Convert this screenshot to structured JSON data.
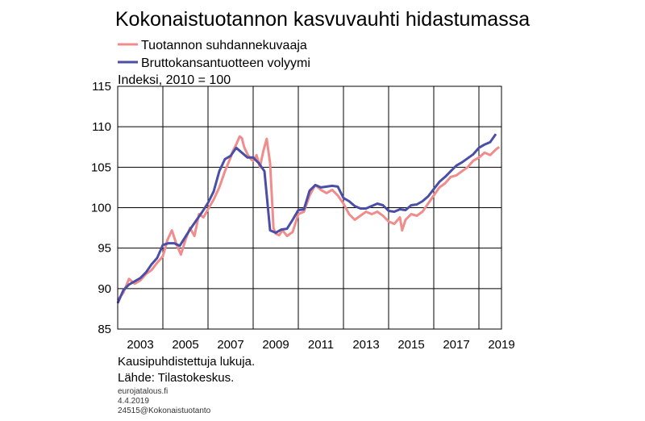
{
  "chart_data": {
    "type": "line",
    "title": "Kokonaistuotannon kasvuvauhti hidastumassa",
    "ylabel": "Indeksi, 2010 = 100",
    "ylim": [
      85,
      115
    ],
    "yticks": [
      85,
      90,
      95,
      100,
      105,
      110,
      115
    ],
    "xlim": [
      2002.0,
      2019.0
    ],
    "xtick_labels": [
      "2003",
      "2005",
      "2007",
      "2009",
      "2011",
      "2013",
      "2015",
      "2017",
      "2019"
    ],
    "grid": true,
    "legend_position": "top-left",
    "series": [
      {
        "name": "Tuotannon suhdannekuvaaja",
        "color": "#f08c8c",
        "x": [
          2002.0,
          2002.25,
          2002.5,
          2002.75,
          2003.0,
          2003.25,
          2003.5,
          2003.75,
          2004.0,
          2004.2,
          2004.4,
          2004.6,
          2004.8,
          2005.0,
          2005.2,
          2005.4,
          2005.6,
          2005.8,
          2006.0,
          2006.25,
          2006.5,
          2006.75,
          2007.0,
          2007.1,
          2007.25,
          2007.4,
          2007.5,
          2007.6,
          2007.75,
          2007.9,
          2008.0,
          2008.15,
          2008.3,
          2008.45,
          2008.6,
          2008.75,
          2008.9,
          2009.0,
          2009.15,
          2009.3,
          2009.5,
          2009.75,
          2010.0,
          2010.25,
          2010.5,
          2010.75,
          2011.0,
          2011.25,
          2011.5,
          2011.75,
          2012.0,
          2012.25,
          2012.5,
          2012.75,
          2013.0,
          2013.25,
          2013.5,
          2013.75,
          2014.0,
          2014.25,
          2014.5,
          2014.6,
          2014.75,
          2015.0,
          2015.25,
          2015.5,
          2015.75,
          2016.0,
          2016.25,
          2016.5,
          2016.75,
          2017.0,
          2017.25,
          2017.5,
          2017.75,
          2018.0,
          2018.25,
          2018.5,
          2018.75,
          2018.9
        ],
        "values": [
          88.6,
          89.5,
          91.2,
          90.6,
          91.0,
          91.8,
          92.3,
          93.2,
          94.0,
          96.0,
          97.2,
          95.5,
          94.2,
          96.0,
          97.5,
          96.5,
          99.2,
          98.8,
          99.8,
          101.0,
          102.5,
          104.5,
          106.2,
          107.0,
          107.8,
          108.8,
          108.6,
          107.5,
          106.6,
          106.0,
          105.8,
          106.5,
          105.0,
          107.0,
          108.5,
          105.5,
          97.5,
          96.8,
          96.6,
          97.2,
          96.5,
          97.0,
          99.2,
          99.5,
          101.5,
          102.8,
          102.2,
          101.8,
          102.2,
          101.5,
          100.5,
          99.2,
          98.5,
          99.0,
          99.5,
          99.2,
          99.5,
          99.0,
          98.3,
          98.0,
          98.8,
          97.2,
          98.5,
          99.2,
          99.0,
          99.5,
          100.5,
          101.5,
          102.5,
          103.0,
          103.8,
          104.0,
          104.5,
          105.0,
          105.8,
          106.2,
          106.8,
          106.5,
          107.2,
          107.5
        ]
      },
      {
        "name": "Bruttokansantuotteen volyymi",
        "color": "#4a4ea6",
        "x": [
          2002.0,
          2002.25,
          2002.5,
          2002.75,
          2003.0,
          2003.25,
          2003.5,
          2003.75,
          2004.0,
          2004.25,
          2004.5,
          2004.75,
          2005.0,
          2005.25,
          2005.5,
          2005.75,
          2006.0,
          2006.25,
          2006.5,
          2006.75,
          2007.0,
          2007.25,
          2007.5,
          2007.75,
          2008.0,
          2008.25,
          2008.5,
          2008.75,
          2009.0,
          2009.25,
          2009.5,
          2009.75,
          2010.0,
          2010.25,
          2010.5,
          2010.75,
          2011.0,
          2011.25,
          2011.5,
          2011.75,
          2012.0,
          2012.25,
          2012.5,
          2012.75,
          2013.0,
          2013.25,
          2013.5,
          2013.75,
          2014.0,
          2014.25,
          2014.5,
          2014.75,
          2015.0,
          2015.25,
          2015.5,
          2015.75,
          2016.0,
          2016.25,
          2016.5,
          2016.75,
          2017.0,
          2017.25,
          2017.5,
          2017.75,
          2018.0,
          2018.25,
          2018.5,
          2018.75
        ],
        "values": [
          88.2,
          89.8,
          90.5,
          90.9,
          91.3,
          92.0,
          93.0,
          93.8,
          95.4,
          95.6,
          95.6,
          95.3,
          96.4,
          97.5,
          98.5,
          99.5,
          100.6,
          102.0,
          104.5,
          106.0,
          106.4,
          107.4,
          106.8,
          106.2,
          106.2,
          105.5,
          104.5,
          97.2,
          96.9,
          97.3,
          97.4,
          98.5,
          99.7,
          99.8,
          102.1,
          102.8,
          102.5,
          102.6,
          102.7,
          102.6,
          101.2,
          100.8,
          100.2,
          99.9,
          99.9,
          100.2,
          100.5,
          100.3,
          99.6,
          99.5,
          99.8,
          99.7,
          100.3,
          100.4,
          100.8,
          101.4,
          102.3,
          103.2,
          103.8,
          104.5,
          105.2,
          105.6,
          106.1,
          106.6,
          107.4,
          107.8,
          108.1,
          109.1
        ]
      }
    ]
  },
  "notes": {
    "line1": "Kausipuhdistettuja lukuja.",
    "line2": "Lähde: Tilastokeskus."
  },
  "meta": {
    "site": "eurojatalous.fi",
    "date": "4.4.2019",
    "code": "24515@Kokonaistuotanto"
  }
}
